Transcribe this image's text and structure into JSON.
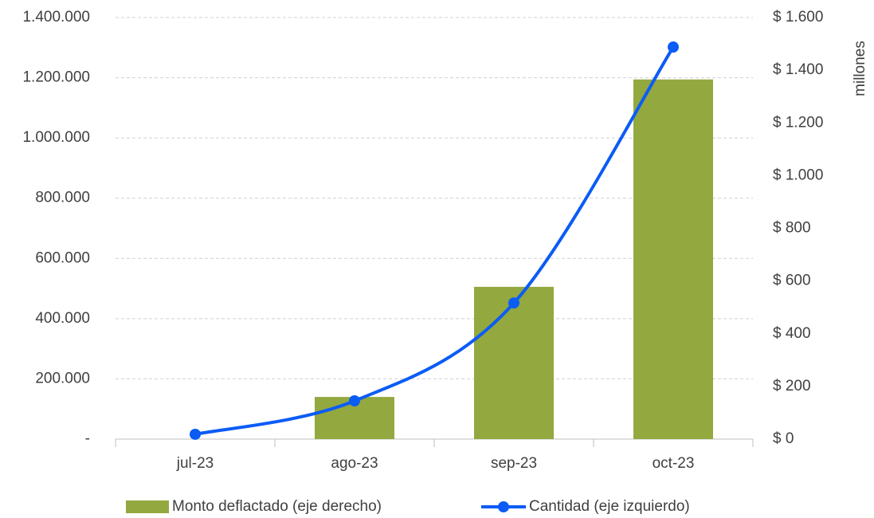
{
  "chart_data": {
    "type": "combo",
    "categories": [
      "jul-23",
      "ago-23",
      "sep-23",
      "oct-23"
    ],
    "series": [
      {
        "name": "Monto deflactado (eje derecho)",
        "type": "bar",
        "axis": "y2",
        "color": "#93a83f",
        "values": [
          0,
          160,
          578,
          1365
        ]
      },
      {
        "name": "Cantidad (eje izquierdo)",
        "type": "line",
        "axis": "y",
        "color": "#0b5cf5",
        "values": [
          16000,
          127000,
          452000,
          1302000
        ]
      }
    ],
    "ylim": [
      0,
      1400000
    ],
    "yticks": [
      {
        "value": 0,
        "label": "-"
      },
      {
        "value": 200000,
        "label": "200.000"
      },
      {
        "value": 400000,
        "label": "400.000"
      },
      {
        "value": 600000,
        "label": "600.000"
      },
      {
        "value": 800000,
        "label": "800.000"
      },
      {
        "value": 1000000,
        "label": "1.000.000"
      },
      {
        "value": 1200000,
        "label": "1.200.000"
      },
      {
        "value": 1400000,
        "label": "1.400.000"
      }
    ],
    "y2lim": [
      0,
      1600
    ],
    "y2ticks": [
      {
        "value": 0,
        "label": "$ 0"
      },
      {
        "value": 200,
        "label": "$ 200"
      },
      {
        "value": 400,
        "label": "$ 400"
      },
      {
        "value": 600,
        "label": "$ 600"
      },
      {
        "value": 800,
        "label": "$ 800"
      },
      {
        "value": 1000,
        "label": "$ 1.000"
      },
      {
        "value": 1200,
        "label": "$ 1.200"
      },
      {
        "value": 1400,
        "label": "$ 1.400"
      },
      {
        "value": 1600,
        "label": "$ 1.600"
      }
    ],
    "y2label": "millones",
    "grid": true,
    "legend": "bottom"
  }
}
